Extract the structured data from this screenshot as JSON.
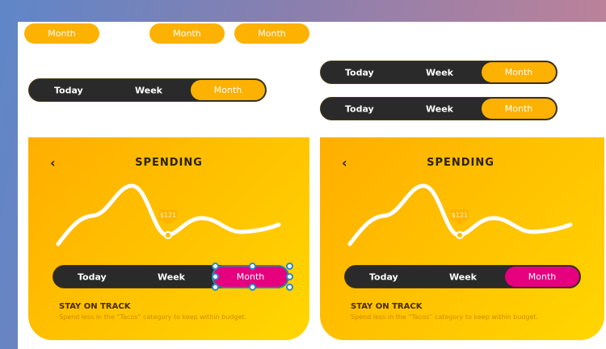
{
  "pills": [
    "Month",
    "Month",
    "Month"
  ],
  "segmented_controls": [
    {
      "options": [
        "Today",
        "Week",
        "Month"
      ],
      "active": "Month"
    },
    {
      "options": [
        "Today",
        "Week",
        "Month"
      ],
      "active": "Month"
    },
    {
      "options": [
        "Today",
        "Week",
        "Month"
      ],
      "active": "Month"
    }
  ],
  "cards": [
    {
      "title": "SPENDING",
      "price_tag": "$121",
      "options": [
        "Today",
        "Week",
        "Month"
      ],
      "active": "Month",
      "heading": "STAY ON TRACK",
      "text": "Spend less in the “Tacos” category to keep within budget.",
      "selected": true
    },
    {
      "title": "SPENDING",
      "price_tag": "$121",
      "options": [
        "Today",
        "Week",
        "Month"
      ],
      "active": "Month",
      "heading": "STAY ON TRACK",
      "text": "Spend less in the “Tacos” category to keep within budget.",
      "selected": false
    }
  ],
  "colors": {
    "accent": "#fdb100",
    "active_pink": "#e6007e",
    "dark": "#2a2a2a"
  }
}
